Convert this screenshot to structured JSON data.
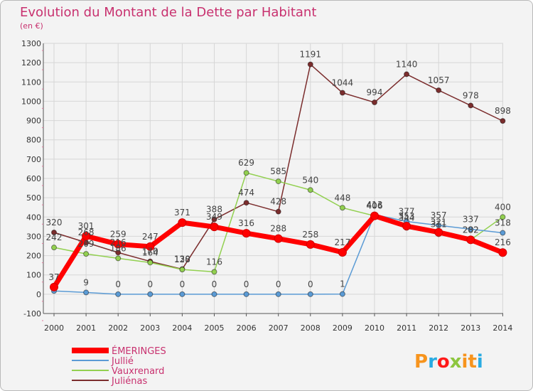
{
  "chart_data": {
    "type": "line",
    "title": "Evolution du Montant de la Dette par Habitant",
    "subtitle": "(en €)",
    "x": [
      "2000",
      "2001",
      "2002",
      "2003",
      "2004",
      "2005",
      "2006",
      "2007",
      "2008",
      "2009",
      "2010",
      "2011",
      "2012",
      "2013",
      "2014"
    ],
    "ylim": [
      -100,
      1300
    ],
    "yticks": [
      -100,
      0,
      100,
      200,
      300,
      400,
      500,
      600,
      700,
      800,
      900,
      1000,
      1100,
      1200,
      1300
    ],
    "grid": true,
    "legend_position": "bottom-left",
    "series": [
      {
        "name": "ÉMERINGES",
        "color": "#ff0000",
        "values": [
          37,
          301,
          259,
          247,
          371,
          349,
          316,
          288,
          258,
          217,
          406,
          353,
          321,
          282,
          216
        ],
        "labels": [
          "37",
          "301",
          "259",
          "247",
          "371",
          "349",
          "316",
          "288",
          "258",
          "217",
          "406",
          "353",
          "321",
          "282",
          "216"
        ]
      },
      {
        "name": "Jullié",
        "color": "#5b9bd5",
        "values": [
          17,
          9,
          0,
          0,
          0,
          0,
          0,
          0,
          0,
          1,
          413,
          377,
          357,
          337,
          318
        ],
        "labels": [
          "",
          "9",
          "0",
          "0",
          "0",
          "0",
          "0",
          "0",
          "0",
          "1",
          "413",
          "377",
          "357",
          "337",
          "318"
        ]
      },
      {
        "name": "Vauxrenard",
        "color": "#92d050",
        "values": [
          242,
          209,
          186,
          164,
          128,
          116,
          629,
          585,
          540,
          448,
          406,
          344,
          311,
          282,
          400
        ],
        "labels": [
          "242",
          "209",
          "186",
          "164",
          "128",
          "116",
          "629",
          "585",
          "540",
          "448",
          "406",
          "344",
          "311",
          "282",
          "400"
        ]
      },
      {
        "name": "Juliénas",
        "color": "#7b2d2d",
        "values": [
          320,
          268,
          216,
          170,
          130,
          388,
          474,
          428,
          1191,
          1044,
          994,
          1140,
          1057,
          978,
          898
        ],
        "labels": [
          "320",
          "268",
          "216",
          "170",
          "130",
          "388",
          "474",
          "428",
          "1191",
          "1044",
          "994",
          "1140",
          "1057",
          "978",
          "898"
        ]
      }
    ]
  },
  "brand": {
    "logo_text": "Proxiti",
    "logo_colors": [
      "#f7941d",
      "#29abe2",
      "#ff1a1a",
      "#8dc63f",
      "#f7941d",
      "#f7941d",
      "#29abe2"
    ]
  }
}
